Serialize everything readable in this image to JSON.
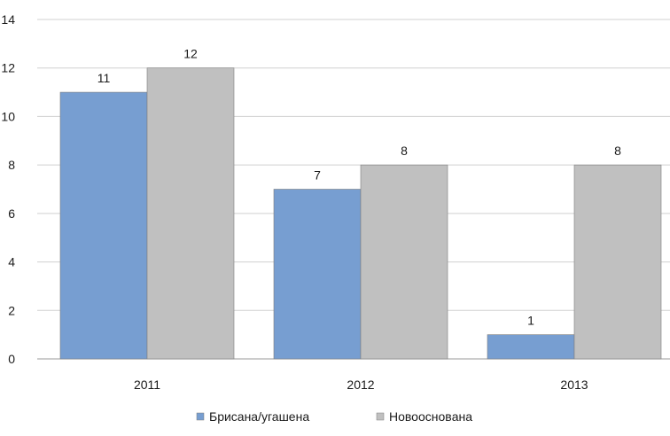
{
  "chart_data": {
    "type": "bar",
    "categories": [
      "2011",
      "2012",
      "2013"
    ],
    "series": [
      {
        "name": "Брисана/угашена",
        "color": "#779ed1",
        "values": [
          11,
          7,
          1
        ]
      },
      {
        "name": "Новоосновaна",
        "color": "#c0c0c0",
        "values": [
          12,
          8,
          8
        ]
      }
    ],
    "ylim": [
      0,
      14
    ],
    "yticks": [
      0,
      2,
      4,
      6,
      8,
      10,
      12,
      14
    ],
    "grid": true,
    "legend_position": "bottom"
  }
}
